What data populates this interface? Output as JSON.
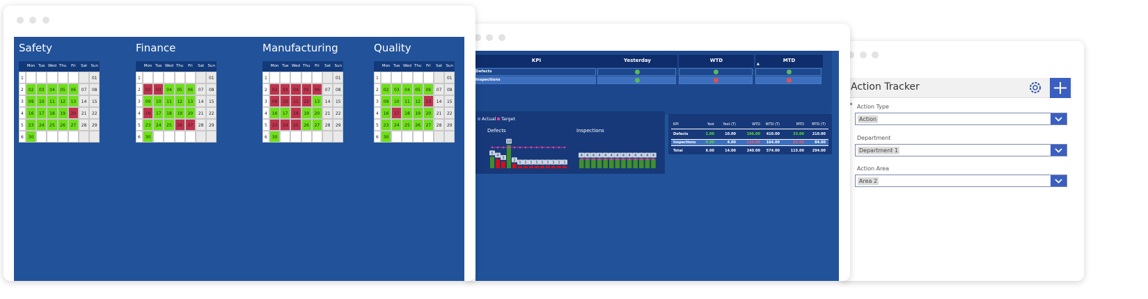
{
  "calendar_window": {
    "weekdays": [
      "Mon",
      "Tue",
      "Wed",
      "Thu",
      "Fri",
      "Sat",
      "Sun"
    ],
    "weeks": [
      "1",
      "2",
      "3",
      "4",
      "5",
      "6"
    ],
    "dates": [
      [
        null,
        null,
        null,
        null,
        null,
        null,
        "01"
      ],
      [
        "02",
        "03",
        "04",
        "05",
        "06",
        "07",
        "08"
      ],
      [
        "09",
        "10",
        "11",
        "12",
        "13",
        "14",
        "15"
      ],
      [
        "16",
        "17",
        "18",
        "19",
        "20",
        "21",
        "22"
      ],
      [
        "23",
        "24",
        "25",
        "26",
        "27",
        "28",
        "29"
      ],
      [
        "30",
        null,
        null,
        null,
        null,
        null,
        null
      ]
    ],
    "calendars": [
      {
        "title": "Safety",
        "colors": [
          [
            null,
            null,
            null,
            null,
            null,
            null,
            null
          ],
          [
            "#6ee01a",
            "#6ee01a",
            "#6ee01a",
            "#6ee01a",
            "#6ee01a",
            null,
            null
          ],
          [
            "#6ee01a",
            "#6ee01a",
            "#6ee01a",
            "#6ee01a",
            "#6ee01a",
            null,
            null
          ],
          [
            "#6ee01a",
            "#6ee01a",
            "#6ee01a",
            "#6ee01a",
            "#c0334d",
            null,
            null
          ],
          [
            "#6ee01a",
            "#6ee01a",
            "#6ee01a",
            "#6ee01a",
            "#6ee01a",
            null,
            null
          ],
          [
            "#6ee01a",
            null,
            null,
            null,
            null,
            null,
            null
          ]
        ]
      },
      {
        "title": "Finance",
        "colors": [
          [
            null,
            null,
            null,
            null,
            null,
            null,
            null
          ],
          [
            "#c0334d",
            "#c0334d",
            "#6ee01a",
            "#6ee01a",
            "#6ee01a",
            null,
            null
          ],
          [
            "#6ee01a",
            "#6ee01a",
            "#6ee01a",
            "#6ee01a",
            "#6ee01a",
            null,
            null
          ],
          [
            "#c0334d",
            "#6ee01a",
            "#6ee01a",
            "#6ee01a",
            "#6ee01a",
            null,
            null
          ],
          [
            "#6ee01a",
            "#6ee01a",
            "#6ee01a",
            "#c0334d",
            "#c0334d",
            null,
            null
          ],
          [
            "#6ee01a",
            null,
            null,
            null,
            null,
            null,
            null
          ]
        ]
      },
      {
        "title": "Manufacturing",
        "colors": [
          [
            null,
            null,
            null,
            null,
            null,
            null,
            null
          ],
          [
            "#c0334d",
            "#c0334d",
            "#c0334d",
            "#c0334d",
            "#c0334d",
            null,
            null
          ],
          [
            "#c0334d",
            "#c0334d",
            "#c0334d",
            "#c0334d",
            "#6ee01a",
            null,
            null
          ],
          [
            "#6ee01a",
            "#6ee01a",
            "#c0334d",
            "#6ee01a",
            "#6ee01a",
            null,
            null
          ],
          [
            "#c0334d",
            "#c0334d",
            "#c0334d",
            "#6ee01a",
            "#6ee01a",
            null,
            null
          ],
          [
            "#6ee01a",
            null,
            null,
            null,
            null,
            null,
            null
          ]
        ]
      },
      {
        "title": "Quality",
        "colors": [
          [
            null,
            null,
            null,
            null,
            null,
            null,
            null
          ],
          [
            "#6ee01a",
            "#6ee01a",
            "#6ee01a",
            "#6ee01a",
            "#6ee01a",
            null,
            null
          ],
          [
            "#6ee01a",
            "#6ee01a",
            "#6ee01a",
            "#6ee01a",
            "#c0334d",
            null,
            null
          ],
          [
            "#6ee01a",
            "#c0334d",
            "#6ee01a",
            "#6ee01a",
            "#6ee01a",
            null,
            null
          ],
          [
            "#6ee01a",
            "#6ee01a",
            "#6ee01a",
            "#6ee01a",
            "#6ee01a",
            null,
            null
          ],
          [
            "#6ee01a",
            null,
            null,
            null,
            null,
            null,
            null
          ]
        ]
      }
    ]
  },
  "kpi_window": {
    "status_table": {
      "headers": [
        "KPI",
        "Yesterday",
        "WTD",
        "MTD"
      ],
      "rows": [
        {
          "name": "Defects",
          "status": [
            "#5cb85c",
            "#5cb85c",
            "#5cb85c"
          ]
        },
        {
          "name": "Inspections",
          "status": [
            "#5cb85c",
            "#e05050",
            "#e05050"
          ]
        }
      ]
    },
    "chart": {
      "type": "bar",
      "ylim": [
        0,
        12
      ],
      "legend": [
        {
          "name": "Actual",
          "color": "#4a7bd0"
        },
        {
          "name": "Target",
          "color": "#e0409a"
        }
      ],
      "panels": [
        {
          "title": "Defects",
          "values": [
            5,
            4,
            3,
            10,
            2,
            1,
            1,
            1,
            1,
            1,
            1,
            1,
            1,
            1
          ],
          "target": [
            9,
            9,
            9,
            9,
            9,
            9,
            9,
            9,
            9,
            9,
            9,
            9,
            9,
            9
          ],
          "colors": [
            "#3f8f2a",
            "#d0101a",
            "#d0101a",
            "#3f8f2a",
            "#d0101a",
            "#d0101a",
            "#d0101a",
            "#d0101a",
            "#d0101a",
            "#d0101a",
            "#d0101a",
            "#d0101a",
            "#d0101a",
            "#d0101a"
          ]
        },
        {
          "title": "Inspections",
          "values": [
            4,
            4,
            4,
            4,
            4,
            4,
            4,
            4,
            4,
            4,
            4,
            4,
            4
          ],
          "target": [
            4,
            4,
            4,
            4,
            4,
            4,
            4,
            4,
            4,
            4,
            4,
            4,
            4
          ],
          "colors": [
            "#3f8f2a",
            "#3f8f2a",
            "#3f8f2a",
            "#3f8f2a",
            "#3f8f2a",
            "#3f8f2a",
            "#3f8f2a",
            "#3f8f2a",
            "#3f8f2a",
            "#3f8f2a",
            "#3f8f2a",
            "#3f8f2a",
            "#3f8f2a"
          ]
        }
      ]
    },
    "summary_table": {
      "headers": [
        "KPI",
        "Yest",
        "Yest (T)",
        "WTD",
        "WTD (T)",
        "MTD",
        "MTD (T)"
      ],
      "rows": [
        [
          "Defects",
          "2.00",
          "10.00",
          "106.00",
          "410.00",
          "33.00",
          "210.00"
        ],
        [
          "Inspections",
          "4.00",
          "4.00",
          "134.00",
          "164.00",
          "82.00",
          "84.00"
        ],
        [
          "Total",
          "6.00",
          "14.00",
          "240.00",
          "574.00",
          "115.00",
          "294.00"
        ]
      ],
      "colors": [
        [
          null,
          "#5fe02a",
          null,
          "#5fe02a",
          null,
          "#5fe02a",
          null
        ],
        [
          null,
          "#5fe02a",
          null,
          "#ff5a5a",
          null,
          "#ff5a5a",
          null
        ],
        [
          null,
          null,
          null,
          null,
          null,
          null,
          null
        ]
      ]
    }
  },
  "action_window": {
    "title": "Action Tracker",
    "required_mark": "*",
    "fields": [
      {
        "label": "Action Type",
        "value": "Action"
      },
      {
        "label": "Department",
        "value": "Department 1"
      },
      {
        "label": "Action Area",
        "value": "Area 2"
      }
    ]
  }
}
